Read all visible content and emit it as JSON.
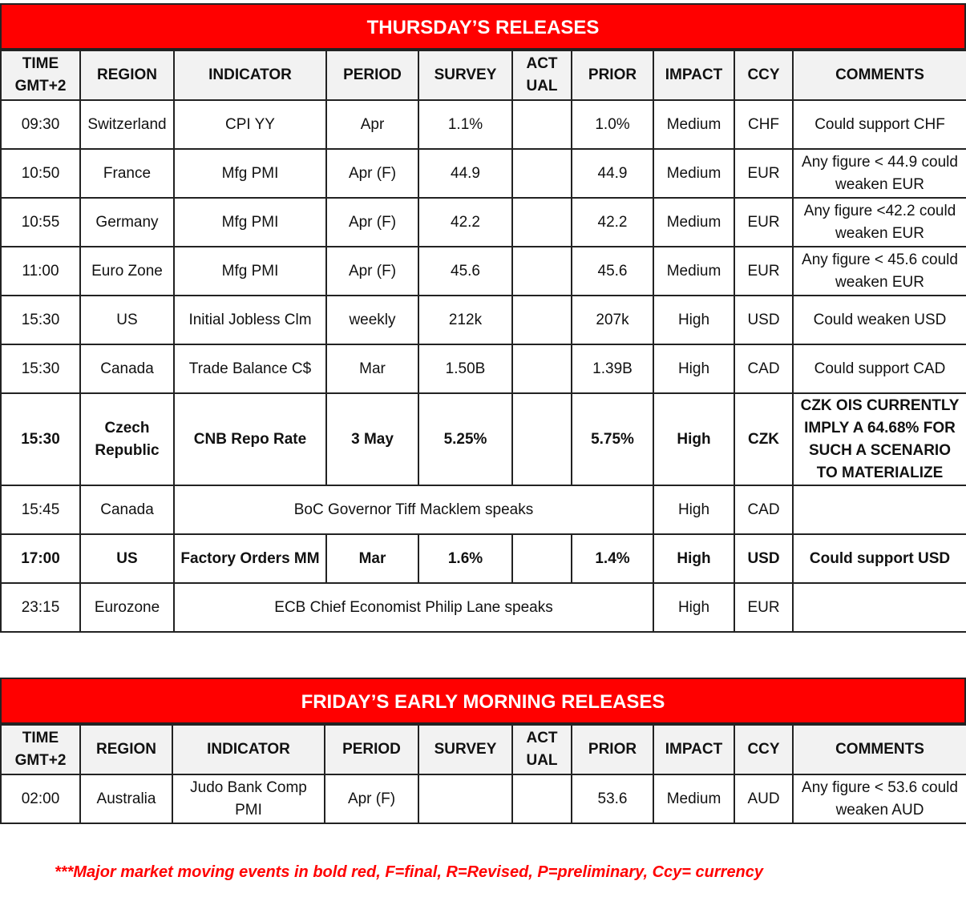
{
  "headers": [
    "TIME GMT+2",
    "REGION",
    "INDICATOR",
    "PERIOD",
    "SURVEY",
    "ACT UAL",
    "PRIOR",
    "IMPACT",
    "CCY",
    "COMMENTS"
  ],
  "thursday": {
    "title": "THURSDAY’S  RELEASES",
    "rows": [
      {
        "time": "09:30",
        "region": "Switzerland",
        "indicator": "CPI YY",
        "period": "Apr",
        "survey": "1.1%",
        "actual": "",
        "prior": "1.0%",
        "impact": "Medium",
        "ccy": "CHF",
        "comments": "Could support CHF"
      },
      {
        "time": "10:50",
        "region": "France",
        "indicator": "Mfg PMI",
        "period": "Apr (F)",
        "survey": "44.9",
        "actual": "",
        "prior": "44.9",
        "impact": "Medium",
        "ccy": "EUR",
        "comments": "Any figure < 44.9 could weaken EUR"
      },
      {
        "time": "10:55",
        "region": "Germany",
        "indicator": "Mfg PMI",
        "period": "Apr (F)",
        "survey": "42.2",
        "actual": "",
        "prior": "42.2",
        "impact": "Medium",
        "ccy": "EUR",
        "comments": "Any figure <42.2 could weaken EUR"
      },
      {
        "time": "11:00",
        "region": "Euro Zone",
        "indicator": "Mfg PMI",
        "period": "Apr (F)",
        "survey": "45.6",
        "actual": "",
        "prior": "45.6",
        "impact": "Medium",
        "ccy": "EUR",
        "comments": "Any figure < 45.6 could weaken EUR"
      },
      {
        "time": "15:30",
        "region": "US",
        "indicator": "Initial Jobless Clm",
        "period": "weekly",
        "survey": "212k",
        "actual": "",
        "prior": "207k",
        "impact": "High",
        "ccy": "USD",
        "comments": "Could weaken USD"
      },
      {
        "time": "15:30",
        "region": "Canada",
        "indicator": "Trade Balance C$",
        "period": "Mar",
        "survey": "1.50B",
        "actual": "",
        "prior": "1.39B",
        "impact": "High",
        "ccy": "CAD",
        "comments": "Could support CAD"
      },
      {
        "time": "15:30",
        "region": "Czech Republic",
        "indicator": "CNB Repo Rate",
        "period": "3 May",
        "survey": "5.25%",
        "actual": "",
        "prior": "5.75%",
        "impact": "High",
        "ccy": "CZK",
        "comments": "CZK OIS CURRENTLY IMPLY A 64.68% FOR SUCH A SCENARIO TO MATERIALIZE",
        "bold": true,
        "tall": true
      },
      {
        "time": "15:45",
        "region": "Canada",
        "event": "BoC Governor Tiff Macklem speaks",
        "impact": "High",
        "ccy": "CAD",
        "comments": ""
      },
      {
        "time": "17:00",
        "region": "US",
        "indicator": "Factory Orders MM",
        "period": "Mar",
        "survey": "1.6%",
        "actual": "",
        "prior": "1.4%",
        "impact": "High",
        "ccy": "USD",
        "comments": "Could support USD",
        "bold": true
      },
      {
        "time": "23:15",
        "region": "Eurozone",
        "event": "ECB Chief Economist Philip Lane speaks",
        "impact": "High",
        "ccy": "EUR",
        "comments": ""
      }
    ]
  },
  "friday": {
    "title": "FRIDAY’S EARLY MORNING RELEASES",
    "rows": [
      {
        "time": "02:00",
        "region": "Australia",
        "indicator": "Judo Bank Comp PMI",
        "period": "Apr (F)",
        "survey": "",
        "actual": "",
        "prior": "53.6",
        "impact": "Medium",
        "ccy": "AUD",
        "comments": "Any figure < 53.6 could weaken AUD"
      }
    ]
  },
  "footer": "***Major market moving events in bold red, F=final, R=Revised, P=preliminary, Ccy= currency",
  "colors": {
    "title_bg": "#ff0000",
    "header_bg": "#f2f2f2",
    "footer_text": "#ff0000"
  }
}
